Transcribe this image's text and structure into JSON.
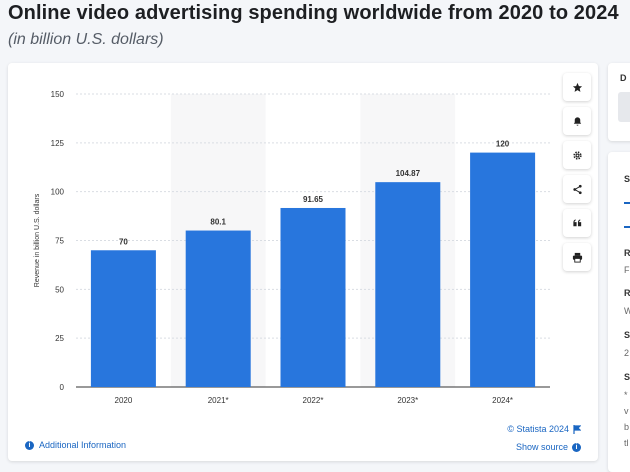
{
  "header": {
    "title": "Online video advertising spending worldwide from 2020 to 2024",
    "subtitle": "(in billion U.S. dollars)"
  },
  "toolbar": {
    "icons": [
      "star-icon",
      "bell-icon",
      "gear-icon",
      "share-icon",
      "quote-icon",
      "print-icon"
    ]
  },
  "footer": {
    "additional_info": "Additional Information",
    "copyright": "© Statista 2024",
    "show_source": "Show source"
  },
  "side": {
    "panel1_letter": "D",
    "panel2_letters": [
      "S",
      "R",
      "F",
      "R",
      "W",
      "S",
      "2",
      "S",
      "*",
      "v",
      "b",
      "tl"
    ]
  },
  "colors": {
    "bar": "#2876dd",
    "highlight_band": "#f7f7f8",
    "link": "#1a66c2"
  },
  "chart_data": {
    "type": "bar",
    "categories": [
      "2020",
      "2021*",
      "2022*",
      "2023*",
      "2024*"
    ],
    "values": [
      70,
      80.1,
      91.65,
      104.87,
      120
    ],
    "value_labels": [
      "70",
      "80.1",
      "91.65",
      "104.87",
      "120"
    ],
    "ylabel": "Revenue in billion U.S. dollars",
    "ylim": [
      0,
      150
    ],
    "yticks": [
      0,
      25,
      50,
      75,
      100,
      125,
      150
    ],
    "grid": true,
    "shaded_categories": [
      "2021*",
      "2023*"
    ]
  }
}
